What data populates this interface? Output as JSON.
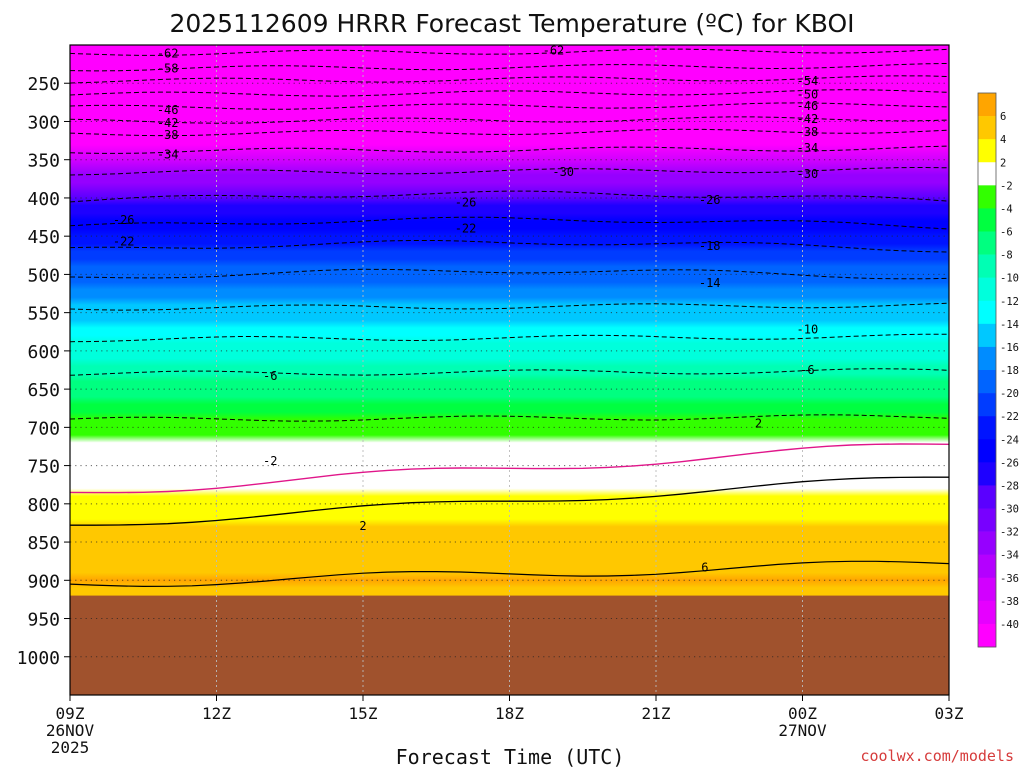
{
  "chart_data": {
    "type": "heatmap",
    "title": "2025112609 HRRR Forecast Temperature (ºC) for KBOI",
    "xlabel": "Forecast Time (UTC)",
    "ylabel": "",
    "credit": "coolwx.com/models",
    "x_ticks": [
      {
        "label": "09Z",
        "hours": 0,
        "sub1": "26NOV",
        "sub2": "2025"
      },
      {
        "label": "12Z",
        "hours": 3,
        "sub1": "",
        "sub2": ""
      },
      {
        "label": "15Z",
        "hours": 6,
        "sub1": "",
        "sub2": ""
      },
      {
        "label": "18Z",
        "hours": 9,
        "sub1": "",
        "sub2": ""
      },
      {
        "label": "21Z",
        "hours": 12,
        "sub1": "",
        "sub2": ""
      },
      {
        "label": "00Z",
        "hours": 15,
        "sub1": "27NOV",
        "sub2": ""
      },
      {
        "label": "03Z",
        "hours": 18,
        "sub1": "",
        "sub2": ""
      }
    ],
    "x_range_hours": [
      0,
      18
    ],
    "y_ticks": [
      "250",
      "300",
      "350",
      "400",
      "450",
      "500",
      "550",
      "600",
      "650",
      "700",
      "750",
      "800",
      "850",
      "900",
      "950",
      "1000"
    ],
    "y_range_hPa": [
      200,
      1050
    ],
    "ground_level_hPa": 920,
    "colors": {
      "ground": "#a0522d",
      "above_freezing_line": "#e0168a",
      "contour_line": "#000000"
    },
    "colorbar": {
      "labels": [
        "6",
        "4",
        "2",
        "-2",
        "-4",
        "-6",
        "-8",
        "-10",
        "-12",
        "-14",
        "-16",
        "-18",
        "-20",
        "-22",
        "-24",
        "-26",
        "-28",
        "-30",
        "-32",
        "-34",
        "-36",
        "-38",
        "-40"
      ],
      "bands": [
        "#ffa500",
        "#ffc800",
        "#ffff00",
        "#ffffff",
        "#32ff00",
        "#00ff40",
        "#00ff80",
        "#00ffb4",
        "#00ffdc",
        "#00ffff",
        "#00c8ff",
        "#008cff",
        "#0064ff",
        "#003cff",
        "#0014ff",
        "#0000ff",
        "#1e00ff",
        "#5a00ff",
        "#7800ff",
        "#9600ff",
        "#b400ff",
        "#d200ff",
        "#e600ff",
        "#ff00ff"
      ]
    },
    "temperature_profile": [
      {
        "p": 200,
        "t": -66
      },
      {
        "p": 250,
        "t": -54
      },
      {
        "p": 300,
        "t": -45
      },
      {
        "p": 350,
        "t": -37
      },
      {
        "p": 400,
        "t": -29
      },
      {
        "p": 450,
        "t": -23
      },
      {
        "p": 500,
        "t": -19
      },
      {
        "p": 550,
        "t": -15
      },
      {
        "p": 600,
        "t": -11
      },
      {
        "p": 650,
        "t": -7
      },
      {
        "p": 700,
        "t": -3
      },
      {
        "p": 750,
        "t": 0
      },
      {
        "p": 800,
        "t": 3
      },
      {
        "p": 850,
        "t": 5
      },
      {
        "p": 900,
        "t": 6
      },
      {
        "p": 920,
        "t": 5
      }
    ],
    "contour_labels": [
      {
        "text": "-62",
        "h": 2.0,
        "p": 211
      },
      {
        "text": "-62",
        "h": 9.9,
        "p": 207
      },
      {
        "text": "-58",
        "h": 2.0,
        "p": 231
      },
      {
        "text": "-54",
        "h": 15.1,
        "p": 247
      },
      {
        "text": "-50",
        "h": 15.1,
        "p": 265
      },
      {
        "text": "-46",
        "h": 2.0,
        "p": 285
      },
      {
        "text": "-46",
        "h": 15.1,
        "p": 280
      },
      {
        "text": "-42",
        "h": 2.0,
        "p": 302
      },
      {
        "text": "-42",
        "h": 15.1,
        "p": 297
      },
      {
        "text": "-38",
        "h": 2.0,
        "p": 318
      },
      {
        "text": "-38",
        "h": 15.1,
        "p": 314
      },
      {
        "text": "-34",
        "h": 2.0,
        "p": 343
      },
      {
        "text": "-34",
        "h": 15.1,
        "p": 335
      },
      {
        "text": "-30",
        "h": 10.1,
        "p": 366
      },
      {
        "text": "-30",
        "h": 15.1,
        "p": 369
      },
      {
        "text": "-26",
        "h": 1.1,
        "p": 429
      },
      {
        "text": "-26",
        "h": 8.1,
        "p": 406
      },
      {
        "text": "-26",
        "h": 13.1,
        "p": 403
      },
      {
        "text": "-22",
        "h": 1.1,
        "p": 457
      },
      {
        "text": "-22",
        "h": 8.1,
        "p": 440
      },
      {
        "text": "-18",
        "h": 13.1,
        "p": 463
      },
      {
        "text": "-14",
        "h": 13.1,
        "p": 511
      },
      {
        "text": "-10",
        "h": 15.1,
        "p": 572
      },
      {
        "text": "-6",
        "h": 4.1,
        "p": 633
      },
      {
        "text": "-6",
        "h": 15.1,
        "p": 625
      },
      {
        "text": "-2",
        "h": 4.1,
        "p": 744
      },
      {
        "text": "2",
        "h": 14.1,
        "p": 695
      },
      {
        "text": "2",
        "h": 6.0,
        "p": 829
      },
      {
        "text": "6",
        "h": 13.0,
        "p": 883
      }
    ]
  }
}
